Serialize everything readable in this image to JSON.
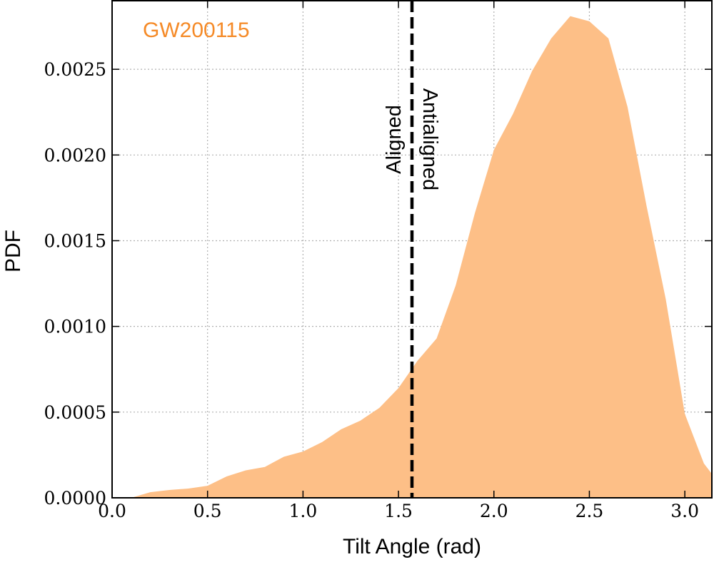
{
  "chart_data": {
    "type": "area",
    "label": "GW200115",
    "xlabel": "Tilt Angle (rad)",
    "ylabel": "PDF",
    "color": "#fdbf87",
    "label_color": "#f58a27",
    "vline": 1.5708,
    "annotations": [
      "Aligned",
      "Antialigned"
    ],
    "grid": true,
    "x": [
      0.1,
      0.2,
      0.3,
      0.4,
      0.5,
      0.6,
      0.7,
      0.8,
      0.9,
      1.0,
      1.1,
      1.2,
      1.3,
      1.4,
      1.5,
      1.6,
      1.7,
      1.8,
      1.9,
      2.0,
      2.1,
      2.2,
      2.3,
      2.4,
      2.5,
      2.6,
      2.7,
      2.8,
      2.9,
      3.0,
      3.1,
      3.1416
    ],
    "values": [
      0,
      3.3e-05,
      4.6e-05,
      5.4e-05,
      7e-05,
      0.000125,
      0.00016,
      0.00018,
      0.00024,
      0.00027,
      0.000325,
      0.0004,
      0.00045,
      0.000525,
      0.00064,
      0.0008,
      0.00093,
      0.00124,
      0.00166,
      0.00203,
      0.00224,
      0.00249,
      0.00268,
      0.00281,
      0.00278,
      0.00268,
      0.00228,
      0.0017,
      0.00116,
      0.00049,
      0.0002,
      0.00014
    ],
    "xlim": [
      0,
      3.1416
    ],
    "ylim": [
      0,
      0.0029
    ],
    "xticks": [
      {
        "value": 0,
        "label": "0.0"
      },
      0.5,
      {
        "value": 1,
        "label": "1.0"
      },
      1.5,
      {
        "value": 2,
        "label": "2.0"
      },
      2.5,
      {
        "value": 3,
        "label": "3.0"
      }
    ],
    "yticks": [
      {
        "value": 0,
        "label": "0.0000"
      },
      {
        "value": 0.0005,
        "label": "0.0005"
      },
      {
        "value": 0.001,
        "label": "0.0010"
      },
      {
        "value": 0.0015,
        "label": "0.0015"
      },
      {
        "value": 0.002,
        "label": "0.0020"
      },
      {
        "value": 0.0025,
        "label": "0.0025"
      }
    ]
  }
}
